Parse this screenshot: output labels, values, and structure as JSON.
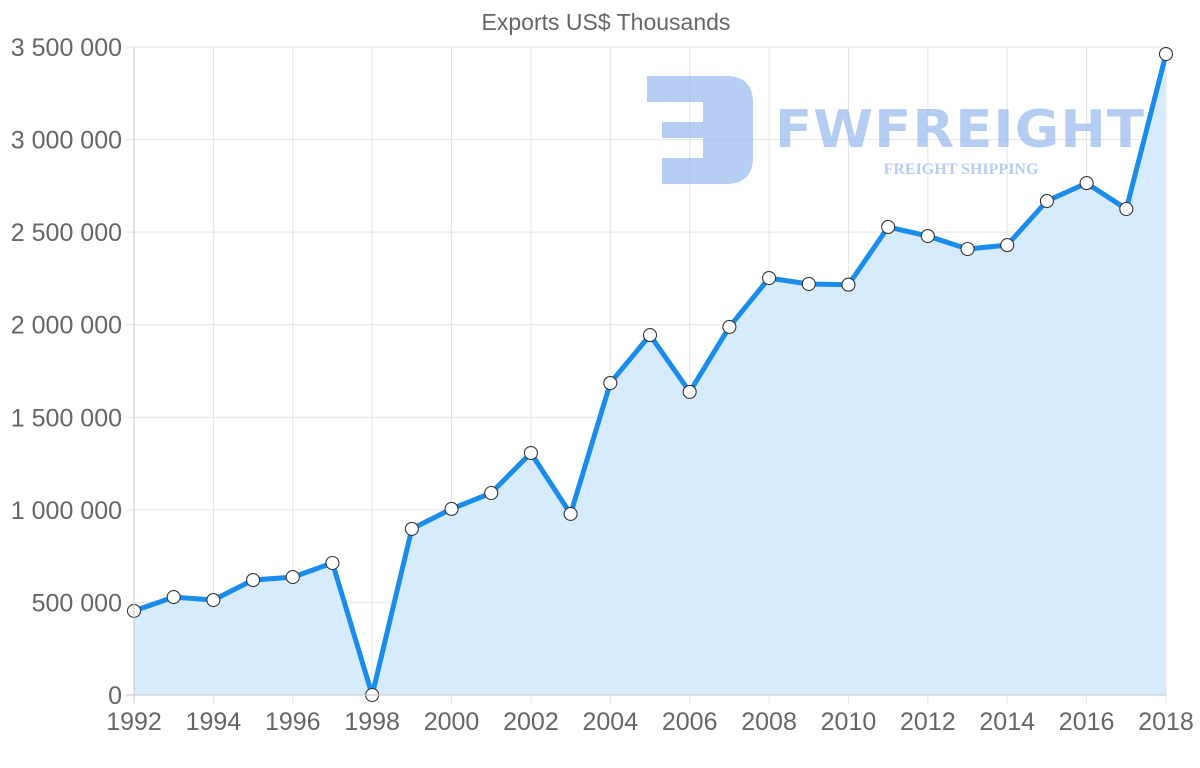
{
  "chart_data": {
    "type": "line",
    "title": "Exports US$ Thousands",
    "xlabel": "",
    "ylabel": "",
    "fill": true,
    "grid": true,
    "legend": "none",
    "ylim": [
      0,
      3500000
    ],
    "yticks": [
      0,
      500000,
      1000000,
      1500000,
      2000000,
      2500000,
      3000000,
      3500000
    ],
    "ytick_labels": [
      "0",
      "500 000",
      "1 000 000",
      "1 500 000",
      "2 000 000",
      "2 500 000",
      "3 000 000",
      "3 500 000"
    ],
    "x": [
      1992,
      1993,
      1994,
      1995,
      1996,
      1997,
      1998,
      1999,
      2000,
      2001,
      2002,
      2003,
      2004,
      2005,
      2006,
      2007,
      2008,
      2009,
      2010,
      2011,
      2012,
      2013,
      2014,
      2015,
      2016,
      2017,
      2018
    ],
    "xtick_labels": [
      "1992",
      "1994",
      "1996",
      "1998",
      "2000",
      "2002",
      "2004",
      "2006",
      "2008",
      "2010",
      "2012",
      "2014",
      "2016",
      "2018"
    ],
    "series": [
      {
        "name": "Exports US$ Thousands",
        "color": "#1a8cec",
        "fill_color": "#d6ebfd",
        "values": [
          454000,
          529000,
          513000,
          621000,
          637000,
          713000,
          0,
          897000,
          1005000,
          1091000,
          1307000,
          978000,
          1685000,
          1944000,
          1637000,
          1988000,
          2252000,
          2220000,
          2216000,
          2528000,
          2479000,
          2409000,
          2430000,
          2668000,
          2765000,
          2625000,
          3462000
        ]
      }
    ]
  },
  "watermark": {
    "brand": "FWFREIGHT",
    "tagline": "FREIGHT SHIPPING",
    "color": "#8fb3ec"
  },
  "colors": {
    "line": "#1a8cec",
    "fill": "#d6ebfd",
    "grid": "#e4e4e4",
    "text": "#666666"
  }
}
